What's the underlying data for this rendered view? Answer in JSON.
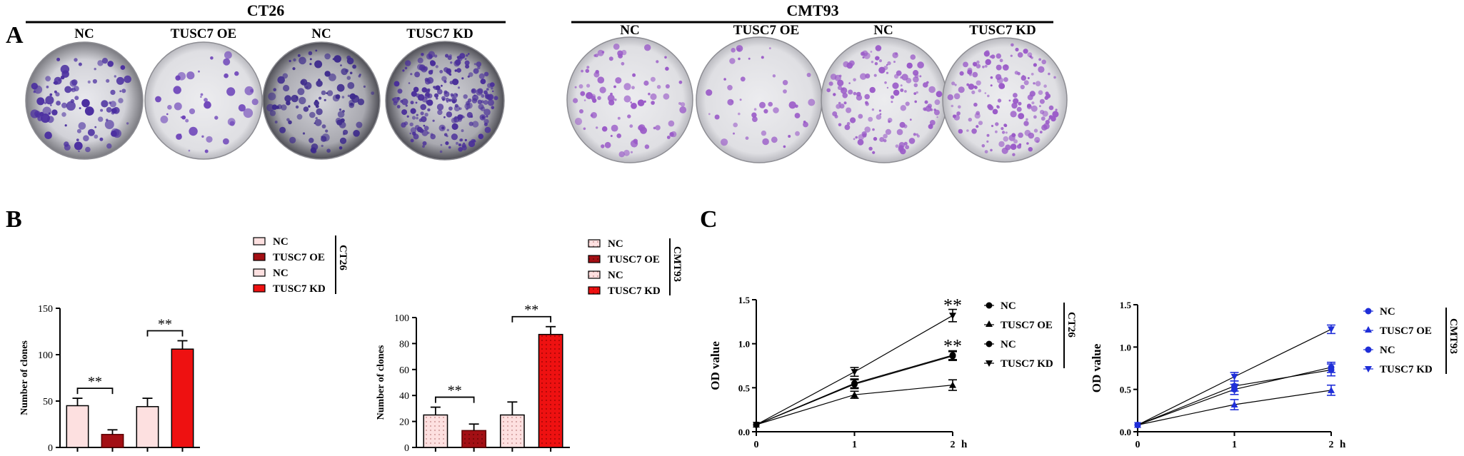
{
  "panel_a": {
    "letter": "A",
    "groups": [
      {
        "title": "CT26",
        "labels": [
          "NC",
          "TUSC7 OE",
          "NC",
          "TUSC7 KD"
        ]
      },
      {
        "title": "CMT93",
        "labels": [
          "NC",
          "TUSC7 OE",
          "NC",
          "TUSC7 KD"
        ]
      }
    ]
  },
  "panel_b": {
    "letter": "B"
  },
  "panel_c": {
    "letter": "C"
  },
  "chart_data": [
    {
      "type": "bar",
      "panel": "B",
      "cell_line": "CT26",
      "ylabel": "Number of clones",
      "ylim": [
        0,
        150
      ],
      "yticks": [
        0,
        50,
        100,
        150
      ],
      "categories": [
        "NC",
        "TUSC7 OE",
        "NC",
        "TUSC7 KD"
      ],
      "values": [
        45,
        14,
        44,
        106
      ],
      "errors": [
        8,
        5,
        9,
        9
      ],
      "colors": [
        "#fde0e0",
        "#a30f14",
        "#fde0e0",
        "#ee1111"
      ],
      "significance": [
        {
          "between": [
            0,
            1
          ],
          "label": "**"
        },
        {
          "between": [
            2,
            3
          ],
          "label": "**"
        }
      ],
      "legend": [
        "NC",
        "TUSC7 OE",
        "NC",
        "TUSC7 KD"
      ]
    },
    {
      "type": "bar",
      "panel": "B",
      "cell_line": "CMT93",
      "ylabel": "Number of clones",
      "ylim": [
        0,
        100
      ],
      "yticks": [
        0,
        20,
        40,
        60,
        80,
        100
      ],
      "categories": [
        "NC",
        "TUSC7 OE",
        "NC",
        "TUSC7 KD"
      ],
      "values": [
        25,
        13,
        25,
        87
      ],
      "errors": [
        6,
        5,
        10,
        6
      ],
      "colors": [
        "#fde0e0",
        "#a30f14",
        "#fde0e0",
        "#ee1111"
      ],
      "significance": [
        {
          "between": [
            0,
            1
          ],
          "label": "**"
        },
        {
          "between": [
            2,
            3
          ],
          "label": "**"
        }
      ],
      "legend": [
        "NC",
        "TUSC7 OE",
        "NC",
        "TUSC7 KD"
      ]
    },
    {
      "type": "line",
      "panel": "C",
      "cell_line": "CT26",
      "ylabel": "OD value",
      "xlabel": "h",
      "x": [
        0,
        1,
        2
      ],
      "xticks": [
        "0",
        "1",
        "2"
      ],
      "ylim": [
        0,
        1.5
      ],
      "yticks": [
        "0.0",
        "0.5",
        "1.0",
        "1.5"
      ],
      "marker_color": "#000000",
      "series": [
        {
          "name": "NC",
          "marker": "circle",
          "values": [
            0.08,
            0.54,
            0.86
          ],
          "errors": [
            0,
            0.05,
            0.05
          ]
        },
        {
          "name": "TUSC7 OE",
          "marker": "triangle-up",
          "values": [
            0.08,
            0.42,
            0.53
          ],
          "errors": [
            0,
            0.04,
            0.06
          ]
        },
        {
          "name": "NC",
          "marker": "circle",
          "values": [
            0.08,
            0.55,
            0.87
          ],
          "errors": [
            0,
            0.05,
            0.05
          ]
        },
        {
          "name": "TUSC7 KD",
          "marker": "triangle-down",
          "values": [
            0.08,
            0.68,
            1.32
          ],
          "errors": [
            0,
            0.05,
            0.07
          ]
        }
      ],
      "annotations": [
        {
          "label": "**",
          "x": 2,
          "y": 1.43
        },
        {
          "label": "**",
          "x": 2,
          "y": 0.97
        }
      ]
    },
    {
      "type": "line",
      "panel": "C",
      "cell_line": "CMT93",
      "ylabel": "OD value",
      "xlabel": "h",
      "x": [
        0,
        1,
        2
      ],
      "xticks": [
        "0",
        "1",
        "2"
      ],
      "ylim": [
        0,
        1.5
      ],
      "yticks": [
        "0.0",
        "0.5",
        "1.0",
        "1.5"
      ],
      "marker_color": "#1f2ed8",
      "series": [
        {
          "name": "NC",
          "marker": "circle",
          "values": [
            0.08,
            0.5,
            0.76
          ],
          "errors": [
            0,
            0.06,
            0.06
          ]
        },
        {
          "name": "TUSC7 OE",
          "marker": "triangle-up",
          "values": [
            0.08,
            0.32,
            0.49
          ],
          "errors": [
            0,
            0.06,
            0.06
          ]
        },
        {
          "name": "NC",
          "marker": "circle",
          "values": [
            0.08,
            0.54,
            0.73
          ],
          "errors": [
            0,
            0.06,
            0.07
          ]
        },
        {
          "name": "TUSC7 KD",
          "marker": "triangle-down",
          "values": [
            0.08,
            0.65,
            1.21
          ],
          "errors": [
            0,
            0.05,
            0.05
          ]
        }
      ]
    }
  ]
}
